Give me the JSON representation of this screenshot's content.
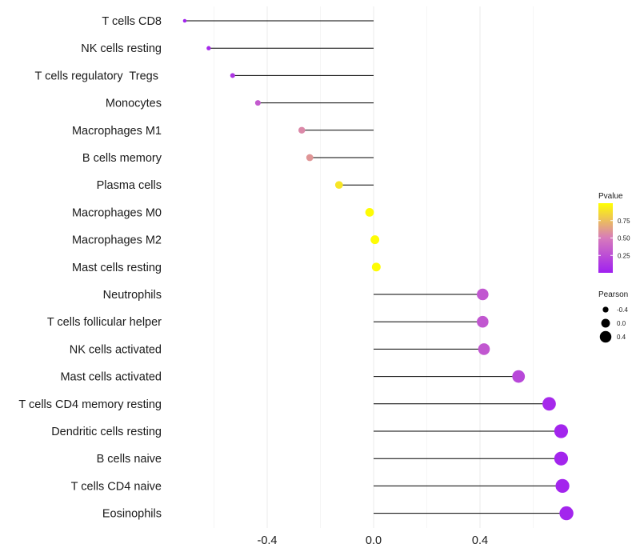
{
  "chart_data": {
    "type": "lollipop",
    "xlabel": "",
    "ylabel": "",
    "xlim": [
      -0.8,
      0.8
    ],
    "xticks": [
      -0.4,
      0.0,
      0.4
    ],
    "xtick_labels": [
      "-0.4",
      "0.0",
      "0.4"
    ],
    "categories": [
      "T cells CD8",
      "NK cells resting",
      "T cells regulatory  Tregs ",
      "Monocytes",
      "Macrophages M1",
      "B cells memory",
      "Plasma cells",
      "Macrophages M0",
      "Macrophages M2",
      "Mast cells resting",
      "Neutrophils",
      "T cells follicular helper",
      "NK cells activated",
      "Mast cells activated",
      "T cells CD4 memory resting",
      "Dendritic cells resting",
      "B cells naive",
      "T cells CD4 naive",
      "Eosinophils"
    ],
    "values": [
      -0.71,
      -0.62,
      -0.53,
      -0.435,
      -0.27,
      -0.24,
      -0.13,
      -0.015,
      0.005,
      0.01,
      0.41,
      0.41,
      0.415,
      0.545,
      0.66,
      0.705,
      0.705,
      0.71,
      0.725
    ],
    "pvalues": [
      0.02,
      0.05,
      0.12,
      0.32,
      0.55,
      0.6,
      0.9,
      0.99,
      0.99,
      0.99,
      0.3,
      0.3,
      0.3,
      0.22,
      0.05,
      0.03,
      0.03,
      0.03,
      0.03
    ],
    "legend_color": {
      "title": "Pvalue",
      "ticks": [
        0.75,
        0.5,
        0.25
      ],
      "tick_labels": [
        "0.75",
        "0.50",
        "0.25"
      ],
      "range": [
        0.0,
        1.0
      ],
      "colors": [
        "#a020f0",
        "#d77bbb",
        "#ffff00"
      ],
      "position": "right"
    },
    "legend_size": {
      "title": "Pearson",
      "values": [
        -0.4,
        0.0,
        0.4
      ],
      "labels": [
        "-0.4",
        "0.0",
        "0.4"
      ],
      "marker_color": "#000000",
      "position": "right"
    },
    "grid": true,
    "stem_color": "#000000"
  }
}
